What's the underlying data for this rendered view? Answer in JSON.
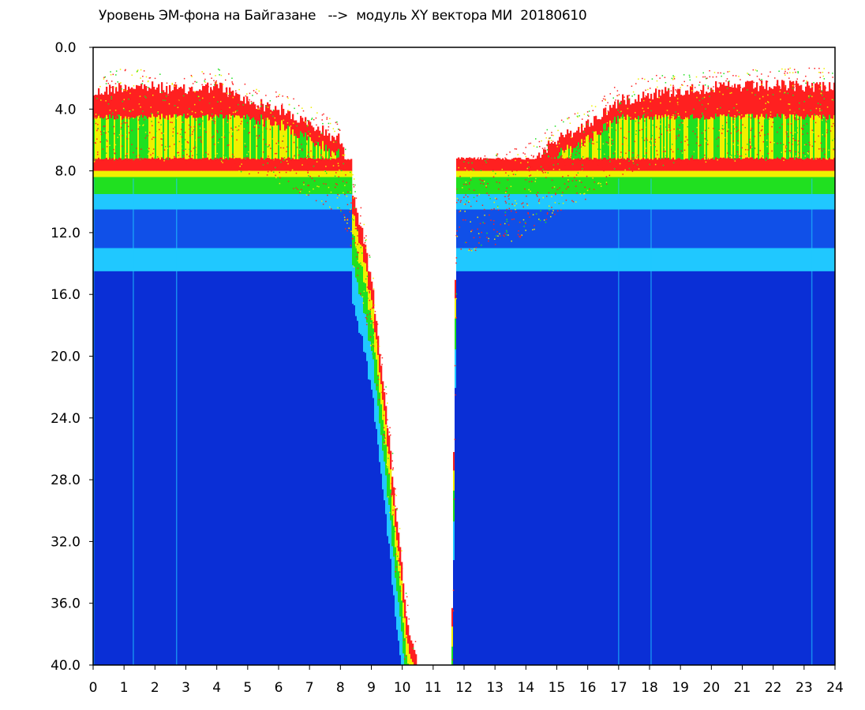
{
  "chart_data": {
    "type": "heatmap",
    "title": "Уровень ЭМ-фона на Байгазане   -->  модуль XY вектора МИ  20180610",
    "xlabel": "",
    "ylabel": "",
    "xlim": [
      0,
      24
    ],
    "ylim": [
      40.0,
      0.0
    ],
    "y_inverted": true,
    "x_ticks": [
      "0",
      "1",
      "2",
      "3",
      "4",
      "5",
      "6",
      "7",
      "8",
      "9",
      "10",
      "11",
      "12",
      "13",
      "14",
      "15",
      "16",
      "17",
      "18",
      "19",
      "20",
      "21",
      "22",
      "23",
      "24"
    ],
    "y_ticks": [
      "0.0",
      "4.0",
      "8.0",
      "12.0",
      "16.0",
      "20.0",
      "24.0",
      "28.0",
      "32.0",
      "36.0",
      "40.0"
    ],
    "colors": {
      "low_blue": "#0a2fd6",
      "blue": "#1050e8",
      "cyan": "#20c8ff",
      "green": "#20e020",
      "yellow": "#f0f000",
      "red": "#ff2020"
    },
    "bands": {
      "upper_edge_red": [
        3.0,
        8.0
      ],
      "green_yellow_band": [
        4.5,
        8.3
      ],
      "cyan_band_top": [
        8.5,
        9.5
      ],
      "cyan_band_lower": [
        13.0,
        14.5
      ],
      "blue_floor_from": 14.5
    },
    "day_envelope": [
      {
        "x": 0.0,
        "top": 3.0
      },
      {
        "x": 1.0,
        "top": 2.5
      },
      {
        "x": 2.0,
        "top": 2.6
      },
      {
        "x": 3.0,
        "top": 2.8
      },
      {
        "x": 4.0,
        "top": 2.5
      },
      {
        "x": 5.0,
        "top": 3.5
      },
      {
        "x": 6.0,
        "top": 4.0
      },
      {
        "x": 7.0,
        "top": 5.0
      },
      {
        "x": 8.0,
        "top": 6.0
      },
      {
        "x": 8.3,
        "top": 8.5
      },
      {
        "x": 8.7,
        "top": 12.0
      },
      {
        "x": 9.0,
        "top": 15.0
      },
      {
        "x": 9.3,
        "top": 20.0
      },
      {
        "x": 9.6,
        "top": 26.0
      },
      {
        "x": 9.9,
        "top": 32.0
      },
      {
        "x": 10.2,
        "top": 38.0
      },
      {
        "x": 10.5,
        "top": 40.0
      },
      {
        "x": 11.6,
        "top": 40.0
      },
      {
        "x": 11.75,
        "top": 9.0
      },
      {
        "x": 12.0,
        "top": 8.5
      },
      {
        "x": 13.0,
        "top": 8.0
      },
      {
        "x": 14.0,
        "top": 7.5
      },
      {
        "x": 15.0,
        "top": 6.0
      },
      {
        "x": 16.0,
        "top": 5.0
      },
      {
        "x": 17.0,
        "top": 3.5
      },
      {
        "x": 18.0,
        "top": 3.0
      },
      {
        "x": 20.0,
        "top": 2.6
      },
      {
        "x": 22.0,
        "top": 2.5
      },
      {
        "x": 24.0,
        "top": 2.5
      }
    ],
    "grid": false,
    "legend": "none"
  }
}
